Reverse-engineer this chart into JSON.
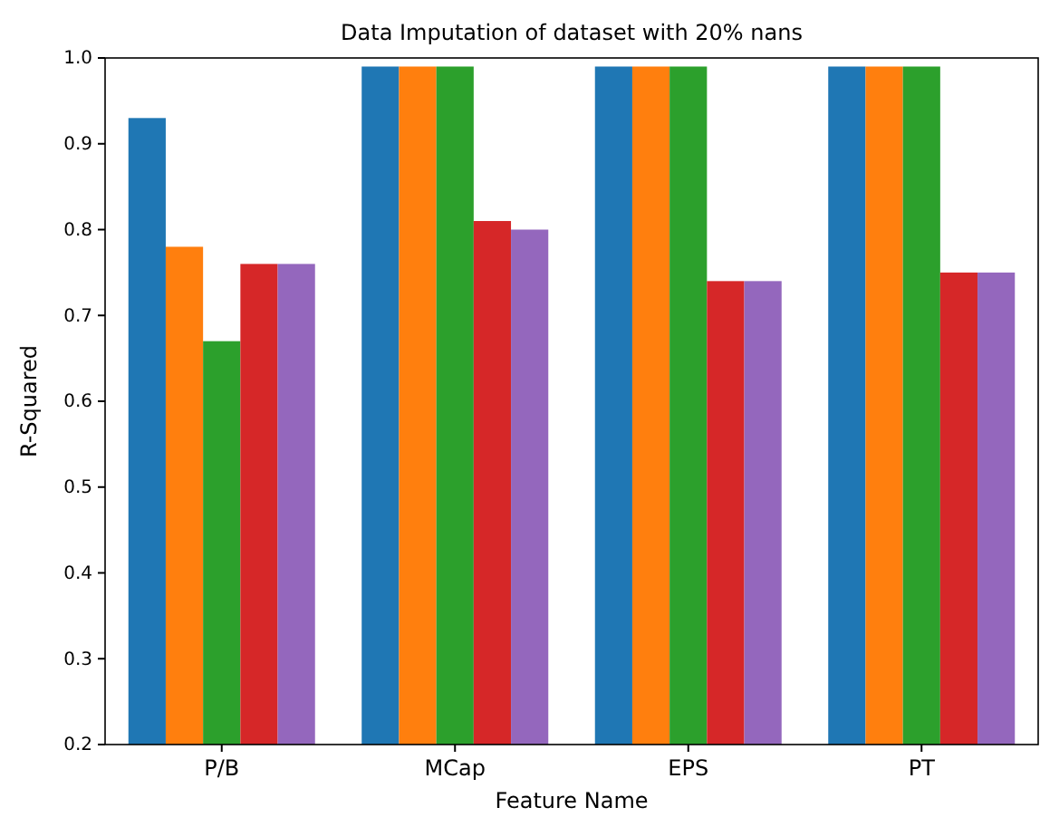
{
  "chart_data": {
    "type": "bar",
    "title": "Data Imputation of dataset with 20% nans",
    "xlabel": "Feature Name",
    "ylabel": "R-Squared",
    "categories": [
      "P/B",
      "MCap",
      "EPS",
      "PT"
    ],
    "series": [
      {
        "color": "#1f77b4",
        "values": [
          0.93,
          0.99,
          0.99,
          0.99
        ]
      },
      {
        "color": "#ff7f0e",
        "values": [
          0.78,
          0.99,
          0.99,
          0.99
        ]
      },
      {
        "color": "#2ca02c",
        "values": [
          0.67,
          0.99,
          0.99,
          0.99
        ]
      },
      {
        "color": "#d62728",
        "values": [
          0.76,
          0.81,
          0.74,
          0.75
        ]
      },
      {
        "color": "#9467bd",
        "values": [
          0.76,
          0.8,
          0.74,
          0.75
        ]
      }
    ],
    "ylim": [
      0.2,
      1.0
    ],
    "yticks": [
      0.2,
      0.3,
      0.4,
      0.5,
      0.6,
      0.7,
      0.8,
      0.9,
      {
        "value": 1.0,
        "label": "1.0"
      }
    ],
    "grid": false
  }
}
